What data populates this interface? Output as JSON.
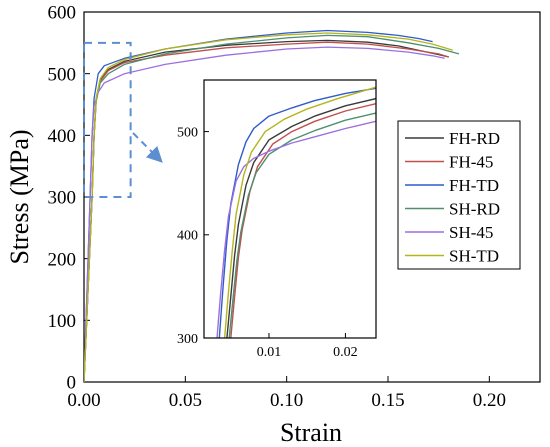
{
  "chart_data": [
    {
      "type": "line",
      "panel": "main",
      "xlabel": "Strain",
      "ylabel": "Stress (MPa)",
      "xlim": [
        0,
        0.225
      ],
      "ylim": [
        0,
        600
      ],
      "xticks": [
        "0.00",
        "0.05",
        "0.10",
        "0.15",
        "0.20"
      ],
      "xtick_values": [
        0,
        0.05,
        0.1,
        0.15,
        0.2
      ],
      "yticks": [
        "0",
        "100",
        "200",
        "300",
        "400",
        "500",
        "600"
      ],
      "ytick_values": [
        0,
        100,
        200,
        300,
        400,
        500,
        600
      ],
      "grid": false,
      "legend_position": "right",
      "zoom_box": {
        "x": [
          0,
          0.023
        ],
        "y": [
          300,
          550
        ]
      },
      "series": [
        {
          "name": "FH-RD",
          "color": "#3a3a3a",
          "x": [
            0,
            0.004,
            0.005,
            0.006,
            0.008,
            0.012,
            0.02,
            0.04,
            0.07,
            0.1,
            0.12,
            0.14,
            0.155,
            0.165,
            0.175,
            0.18
          ],
          "y": [
            0,
            300,
            400,
            460,
            490,
            507,
            520,
            535,
            546,
            552,
            554,
            551,
            545,
            538,
            531,
            527
          ]
        },
        {
          "name": "FH-45",
          "color": "#c0504d",
          "x": [
            0,
            0.004,
            0.005,
            0.006,
            0.008,
            0.012,
            0.02,
            0.04,
            0.07,
            0.1,
            0.12,
            0.14,
            0.16,
            0.175,
            0.18
          ],
          "y": [
            0,
            300,
            400,
            460,
            488,
            505,
            518,
            530,
            542,
            548,
            551,
            548,
            540,
            532,
            527
          ]
        },
        {
          "name": "FH-TD",
          "color": "#2f5cc8",
          "x": [
            0,
            0.003,
            0.004,
            0.005,
            0.007,
            0.01,
            0.02,
            0.04,
            0.07,
            0.1,
            0.12,
            0.14,
            0.155,
            0.165,
            0.172
          ],
          "y": [
            0,
            300,
            400,
            460,
            500,
            513,
            525,
            540,
            556,
            566,
            570,
            567,
            562,
            557,
            552
          ]
        },
        {
          "name": "SH-RD",
          "color": "#4e8f6e",
          "x": [
            0,
            0.004,
            0.005,
            0.006,
            0.008,
            0.012,
            0.02,
            0.04,
            0.07,
            0.1,
            0.12,
            0.14,
            0.16,
            0.175,
            0.185
          ],
          "y": [
            0,
            300,
            400,
            455,
            485,
            500,
            515,
            532,
            548,
            558,
            562,
            560,
            550,
            541,
            532
          ]
        },
        {
          "name": "SH-45",
          "color": "#9b6fe0",
          "x": [
            0,
            0.003,
            0.004,
            0.005,
            0.007,
            0.01,
            0.02,
            0.04,
            0.07,
            0.1,
            0.12,
            0.14,
            0.16,
            0.172,
            0.178
          ],
          "y": [
            0,
            300,
            400,
            448,
            470,
            485,
            500,
            515,
            530,
            540,
            543,
            541,
            535,
            529,
            525
          ]
        },
        {
          "name": "SH-TD",
          "color": "#b5b51a",
          "x": [
            0,
            0.004,
            0.005,
            0.006,
            0.008,
            0.012,
            0.02,
            0.04,
            0.07,
            0.1,
            0.12,
            0.14,
            0.16,
            0.172,
            0.182
          ],
          "y": [
            0,
            300,
            400,
            460,
            492,
            510,
            523,
            540,
            555,
            563,
            566,
            563,
            556,
            548,
            538
          ]
        }
      ]
    },
    {
      "type": "line",
      "panel": "inset",
      "xlim": [
        0.0015,
        0.024
      ],
      "ylim": [
        300,
        550
      ],
      "xticks": [
        "0.01",
        "0.02"
      ],
      "xtick_values": [
        0.01,
        0.02
      ],
      "yticks": [
        "300",
        "400",
        "500"
      ],
      "ytick_values": [
        300,
        400,
        500
      ],
      "series": [
        {
          "name": "FH-RD",
          "color": "#3a3a3a",
          "x": [
            0.0045,
            0.005,
            0.0055,
            0.006,
            0.007,
            0.008,
            0.01,
            0.013,
            0.016,
            0.02,
            0.024
          ],
          "y": [
            300,
            340,
            380,
            410,
            448,
            470,
            492,
            505,
            515,
            525,
            532
          ]
        },
        {
          "name": "FH-45",
          "color": "#c0504d",
          "x": [
            0.005,
            0.0055,
            0.006,
            0.0065,
            0.0075,
            0.0085,
            0.0105,
            0.013,
            0.016,
            0.02,
            0.024
          ],
          "y": [
            300,
            340,
            378,
            405,
            442,
            466,
            488,
            500,
            510,
            520,
            527
          ]
        },
        {
          "name": "FH-TD",
          "color": "#2f5cc8",
          "x": [
            0.0035,
            0.004,
            0.0045,
            0.005,
            0.006,
            0.007,
            0.008,
            0.01,
            0.013,
            0.016,
            0.02,
            0.024
          ],
          "y": [
            300,
            350,
            395,
            430,
            468,
            490,
            503,
            515,
            523,
            530,
            537,
            542
          ]
        },
        {
          "name": "SH-RD",
          "color": "#4e8f6e",
          "x": [
            0.0048,
            0.0053,
            0.0058,
            0.0063,
            0.0073,
            0.0083,
            0.01,
            0.013,
            0.016,
            0.02,
            0.024
          ],
          "y": [
            300,
            338,
            375,
            402,
            438,
            460,
            478,
            492,
            501,
            511,
            518
          ]
        },
        {
          "name": "SH-45",
          "color": "#9b6fe0",
          "x": [
            0.0032,
            0.0037,
            0.0042,
            0.0047,
            0.0057,
            0.0067,
            0.008,
            0.01,
            0.013,
            0.016,
            0.02,
            0.024
          ],
          "y": [
            300,
            345,
            385,
            418,
            452,
            466,
            474,
            481,
            489,
            495,
            503,
            510
          ]
        },
        {
          "name": "SH-TD",
          "color": "#b5b51a",
          "x": [
            0.0042,
            0.0047,
            0.0052,
            0.0057,
            0.0067,
            0.0077,
            0.0095,
            0.012,
            0.015,
            0.019,
            0.024
          ],
          "y": [
            300,
            345,
            385,
            420,
            458,
            480,
            500,
            512,
            522,
            532,
            543
          ]
        }
      ]
    }
  ]
}
